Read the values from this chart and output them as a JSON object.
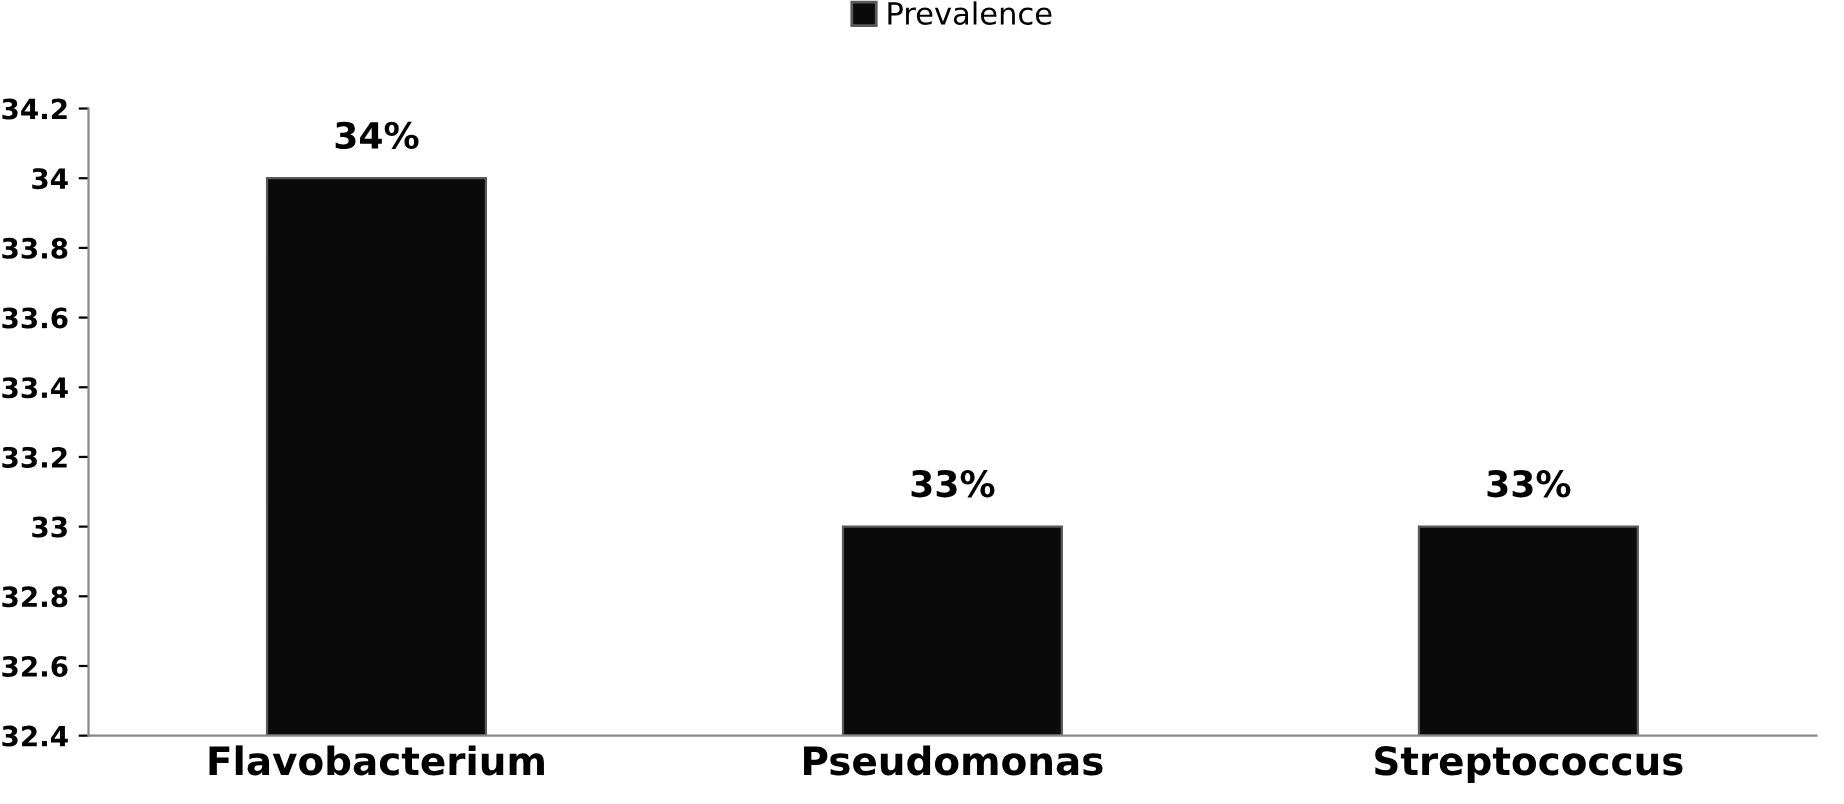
{
  "chart_data": {
    "type": "bar",
    "categories": [
      "Flavobacterium",
      "Pseudomonas",
      "Streptococcus"
    ],
    "series": [
      {
        "name": "Prevalence",
        "color": "#0a0a0a",
        "values": [
          34,
          33,
          33
        ],
        "value_labels": [
          "34%",
          "33%",
          "33%"
        ]
      }
    ],
    "ylim": [
      32.4,
      34.2
    ],
    "yticks": [
      32.4,
      32.6,
      32.8,
      33,
      33.2,
      33.4,
      33.6,
      33.8,
      34,
      34.2
    ],
    "grid": false,
    "legend": "top"
  }
}
